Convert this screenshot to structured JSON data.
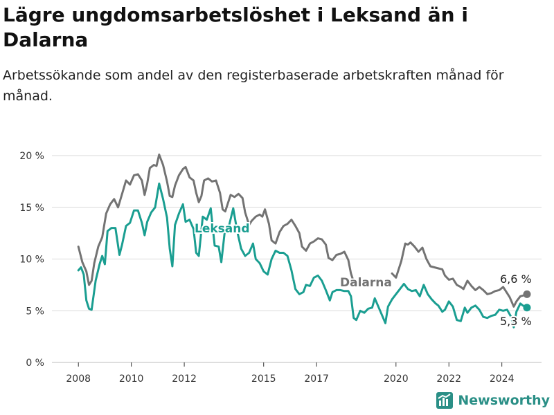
{
  "title": "Lägre ungdomsarbetslöshet i Leksand än i Dalarna",
  "subtitle": "Arbetssökande som andel av den registerbaserade arbetskraften månad för månad.",
  "brand": "Newsworthy",
  "colors": {
    "leksand": "#1a9e91",
    "dalarna": "#737373",
    "grid": "#d9d9d9"
  },
  "chart_data": {
    "type": "line",
    "x_unit": "year",
    "xlim": [
      2007,
      2025.5
    ],
    "ylim": [
      0,
      20
    ],
    "y_ticks": [
      {
        "value": 0,
        "label": "0 %"
      },
      {
        "value": 5,
        "label": "5 %"
      },
      {
        "value": 10,
        "label": "10 %"
      },
      {
        "value": 15,
        "label": "15 %"
      },
      {
        "value": 20,
        "label": "20 %"
      }
    ],
    "x_ticks": [
      {
        "value": 2008,
        "label": "2008"
      },
      {
        "value": 2010,
        "label": "2010"
      },
      {
        "value": 2012,
        "label": "2012"
      },
      {
        "value": 2015,
        "label": "2015"
      },
      {
        "value": 2017,
        "label": "2017"
      },
      {
        "value": 2020,
        "label": "2020"
      },
      {
        "value": 2022,
        "label": "2022"
      },
      {
        "value": 2024,
        "label": "2024"
      }
    ],
    "grid": true,
    "series": [
      {
        "name": "Dalarna",
        "color_key": "dalarna",
        "end_label": "6,6 %",
        "points": [
          [
            2008.0,
            11.2
          ],
          [
            2008.15,
            9.7
          ],
          [
            2008.3,
            8.8
          ],
          [
            2008.4,
            7.5
          ],
          [
            2008.5,
            7.9
          ],
          [
            2008.6,
            9.6
          ],
          [
            2008.75,
            11.2
          ],
          [
            2008.9,
            12.1
          ],
          [
            2009.05,
            14.4
          ],
          [
            2009.2,
            15.3
          ],
          [
            2009.35,
            15.8
          ],
          [
            2009.5,
            15.0
          ],
          [
            2009.65,
            16.3
          ],
          [
            2009.8,
            17.6
          ],
          [
            2009.95,
            17.2
          ],
          [
            2010.1,
            18.1
          ],
          [
            2010.25,
            18.2
          ],
          [
            2010.4,
            17.6
          ],
          [
            2010.5,
            16.2
          ],
          [
            2010.6,
            17.3
          ],
          [
            2010.7,
            18.8
          ],
          [
            2010.85,
            19.1
          ],
          [
            2010.95,
            19.0
          ],
          [
            2011.05,
            20.1
          ],
          [
            2011.2,
            19.1
          ],
          [
            2011.35,
            17.5
          ],
          [
            2011.45,
            16.1
          ],
          [
            2011.55,
            16.0
          ],
          [
            2011.65,
            17.1
          ],
          [
            2011.8,
            18.1
          ],
          [
            2011.95,
            18.7
          ],
          [
            2012.05,
            18.9
          ],
          [
            2012.2,
            17.9
          ],
          [
            2012.35,
            17.6
          ],
          [
            2012.45,
            16.4
          ],
          [
            2012.55,
            15.5
          ],
          [
            2012.65,
            16.1
          ],
          [
            2012.75,
            17.6
          ],
          [
            2012.9,
            17.8
          ],
          [
            2013.05,
            17.5
          ],
          [
            2013.2,
            17.6
          ],
          [
            2013.35,
            16.4
          ],
          [
            2013.45,
            14.8
          ],
          [
            2013.55,
            14.6
          ],
          [
            2013.65,
            15.4
          ],
          [
            2013.75,
            16.2
          ],
          [
            2013.9,
            16.0
          ],
          [
            2014.05,
            16.3
          ],
          [
            2014.2,
            15.9
          ],
          [
            2014.3,
            14.5
          ],
          [
            2014.45,
            13.3
          ],
          [
            2014.55,
            13.7
          ],
          [
            2014.7,
            14.1
          ],
          [
            2014.85,
            14.3
          ],
          [
            2014.95,
            14.1
          ],
          [
            2015.05,
            14.8
          ],
          [
            2015.2,
            13.4
          ],
          [
            2015.3,
            11.8
          ],
          [
            2015.45,
            11.5
          ],
          [
            2015.6,
            12.6
          ],
          [
            2015.75,
            13.2
          ],
          [
            2015.9,
            13.4
          ],
          [
            2016.05,
            13.8
          ],
          [
            2016.2,
            13.2
          ],
          [
            2016.35,
            12.5
          ],
          [
            2016.45,
            11.2
          ],
          [
            2016.6,
            10.8
          ],
          [
            2016.75,
            11.5
          ],
          [
            2016.9,
            11.7
          ],
          [
            2017.05,
            12.0
          ],
          [
            2017.2,
            11.9
          ],
          [
            2017.35,
            11.4
          ],
          [
            2017.45,
            10.1
          ],
          [
            2017.6,
            9.9
          ],
          [
            2017.75,
            10.4
          ],
          [
            2017.9,
            10.5
          ],
          [
            2018.05,
            10.7
          ],
          [
            2018.2,
            9.9
          ],
          [
            2018.3,
            8.6
          ],
          [
            2018.4,
            7.8
          ]
        ],
        "points2": [
          [
            2019.85,
            8.6
          ],
          [
            2020.0,
            8.2
          ],
          [
            2020.2,
            9.8
          ],
          [
            2020.35,
            11.5
          ],
          [
            2020.45,
            11.4
          ],
          [
            2020.55,
            11.6
          ],
          [
            2020.7,
            11.2
          ],
          [
            2020.85,
            10.7
          ],
          [
            2021.0,
            11.1
          ],
          [
            2021.15,
            10.0
          ],
          [
            2021.3,
            9.3
          ],
          [
            2021.45,
            9.2
          ],
          [
            2021.6,
            9.1
          ],
          [
            2021.75,
            9.0
          ],
          [
            2021.85,
            8.4
          ],
          [
            2022.0,
            8.0
          ],
          [
            2022.15,
            8.1
          ],
          [
            2022.3,
            7.5
          ],
          [
            2022.45,
            7.3
          ],
          [
            2022.55,
            7.1
          ],
          [
            2022.7,
            7.9
          ],
          [
            2022.85,
            7.4
          ],
          [
            2023.0,
            7.0
          ],
          [
            2023.15,
            7.3
          ],
          [
            2023.3,
            7.0
          ],
          [
            2023.45,
            6.6
          ],
          [
            2023.6,
            6.7
          ],
          [
            2023.75,
            6.9
          ],
          [
            2023.9,
            7.0
          ],
          [
            2024.05,
            7.3
          ],
          [
            2024.2,
            6.7
          ],
          [
            2024.3,
            6.3
          ],
          [
            2024.45,
            5.4
          ],
          [
            2024.55,
            5.9
          ],
          [
            2024.7,
            6.4
          ],
          [
            2024.85,
            6.5
          ],
          [
            2024.95,
            6.6
          ]
        ]
      },
      {
        "name": "Leksand",
        "color_key": "leksand",
        "end_label": "5,3 %",
        "points": [
          [
            2008.0,
            8.9
          ],
          [
            2008.1,
            9.2
          ],
          [
            2008.2,
            8.5
          ],
          [
            2008.3,
            6.0
          ],
          [
            2008.4,
            5.2
          ],
          [
            2008.5,
            5.1
          ],
          [
            2008.65,
            7.9
          ],
          [
            2008.8,
            9.5
          ],
          [
            2008.9,
            10.3
          ],
          [
            2009.0,
            9.5
          ],
          [
            2009.1,
            12.7
          ],
          [
            2009.25,
            13.0
          ],
          [
            2009.4,
            13.0
          ],
          [
            2009.55,
            10.4
          ],
          [
            2009.65,
            11.4
          ],
          [
            2009.8,
            13.2
          ],
          [
            2009.95,
            13.5
          ],
          [
            2010.1,
            14.7
          ],
          [
            2010.25,
            14.7
          ],
          [
            2010.4,
            13.5
          ],
          [
            2010.5,
            12.3
          ],
          [
            2010.6,
            13.6
          ],
          [
            2010.75,
            14.5
          ],
          [
            2010.9,
            15.0
          ],
          [
            2011.05,
            17.3
          ],
          [
            2011.2,
            15.8
          ],
          [
            2011.35,
            14.0
          ],
          [
            2011.45,
            11.0
          ],
          [
            2011.55,
            9.3
          ],
          [
            2011.65,
            13.3
          ],
          [
            2011.8,
            14.4
          ],
          [
            2011.95,
            15.3
          ],
          [
            2012.05,
            13.6
          ],
          [
            2012.2,
            13.8
          ],
          [
            2012.35,
            12.9
          ],
          [
            2012.45,
            10.6
          ],
          [
            2012.55,
            10.3
          ],
          [
            2012.7,
            14.1
          ],
          [
            2012.85,
            13.8
          ],
          [
            2013.0,
            14.9
          ],
          [
            2013.15,
            11.3
          ],
          [
            2013.3,
            11.2
          ],
          [
            2013.4,
            9.7
          ],
          [
            2013.55,
            13.1
          ],
          [
            2013.7,
            13.3
          ],
          [
            2013.85,
            14.9
          ],
          [
            2014.0,
            12.7
          ],
          [
            2014.15,
            11.0
          ],
          [
            2014.3,
            10.3
          ],
          [
            2014.45,
            10.6
          ],
          [
            2014.6,
            11.5
          ],
          [
            2014.7,
            10.0
          ],
          [
            2014.85,
            9.6
          ],
          [
            2015.0,
            8.8
          ],
          [
            2015.15,
            8.5
          ],
          [
            2015.3,
            10.0
          ],
          [
            2015.45,
            10.8
          ],
          [
            2015.6,
            10.6
          ],
          [
            2015.75,
            10.6
          ],
          [
            2015.9,
            10.3
          ],
          [
            2016.05,
            8.9
          ],
          [
            2016.2,
            7.1
          ],
          [
            2016.35,
            6.6
          ],
          [
            2016.5,
            6.8
          ],
          [
            2016.6,
            7.5
          ],
          [
            2016.75,
            7.4
          ],
          [
            2016.9,
            8.2
          ],
          [
            2017.05,
            8.4
          ],
          [
            2017.2,
            7.9
          ],
          [
            2017.35,
            7.0
          ],
          [
            2017.5,
            6.0
          ],
          [
            2017.6,
            6.8
          ],
          [
            2017.75,
            7.0
          ],
          [
            2017.9,
            7.0
          ],
          [
            2018.05,
            6.9
          ],
          [
            2018.2,
            6.9
          ],
          [
            2018.3,
            6.4
          ],
          [
            2018.4,
            4.3
          ],
          [
            2018.5,
            4.1
          ],
          [
            2018.65,
            5.0
          ],
          [
            2018.8,
            4.8
          ],
          [
            2018.95,
            5.2
          ],
          [
            2019.1,
            5.3
          ],
          [
            2019.2,
            6.2
          ],
          [
            2019.35,
            5.3
          ],
          [
            2019.5,
            4.4
          ],
          [
            2019.6,
            3.8
          ],
          [
            2019.7,
            5.4
          ],
          [
            2019.85,
            6.1
          ],
          [
            2020.0,
            6.6
          ],
          [
            2020.15,
            7.1
          ],
          [
            2020.3,
            7.6
          ],
          [
            2020.45,
            7.1
          ],
          [
            2020.6,
            6.9
          ],
          [
            2020.75,
            7.0
          ],
          [
            2020.9,
            6.4
          ],
          [
            2021.05,
            7.5
          ],
          [
            2021.2,
            6.6
          ],
          [
            2021.35,
            6.1
          ],
          [
            2021.5,
            5.7
          ],
          [
            2021.6,
            5.5
          ],
          [
            2021.75,
            4.9
          ],
          [
            2021.85,
            5.1
          ],
          [
            2022.0,
            5.9
          ],
          [
            2022.15,
            5.4
          ],
          [
            2022.3,
            4.1
          ],
          [
            2022.45,
            4.0
          ],
          [
            2022.6,
            5.3
          ],
          [
            2022.7,
            4.8
          ],
          [
            2022.85,
            5.3
          ],
          [
            2023.0,
            5.5
          ],
          [
            2023.15,
            5.1
          ],
          [
            2023.3,
            4.4
          ],
          [
            2023.45,
            4.3
          ],
          [
            2023.6,
            4.5
          ],
          [
            2023.75,
            4.6
          ],
          [
            2023.9,
            5.1
          ],
          [
            2024.05,
            5.0
          ],
          [
            2024.2,
            5.1
          ],
          [
            2024.35,
            4.4
          ],
          [
            2024.45,
            3.4
          ],
          [
            2024.55,
            4.9
          ],
          [
            2024.7,
            5.7
          ],
          [
            2024.8,
            5.5
          ],
          [
            2024.95,
            5.3
          ]
        ]
      }
    ]
  }
}
